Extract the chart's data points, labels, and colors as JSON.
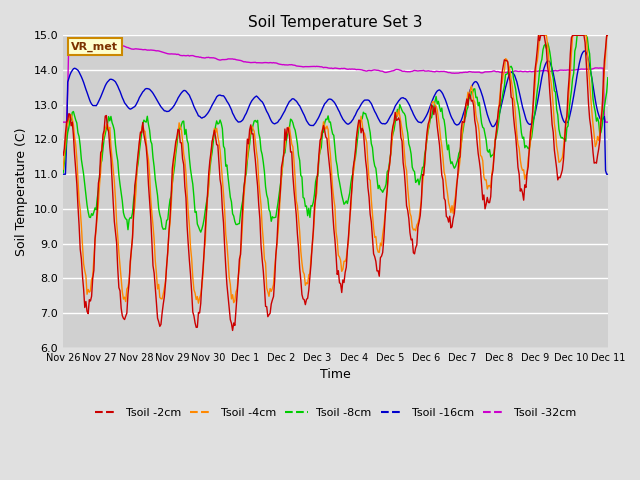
{
  "title": "Soil Temperature Set 3",
  "xlabel": "Time",
  "ylabel": "Soil Temperature (C)",
  "ylim": [
    6.0,
    15.0
  ],
  "yticks": [
    6.0,
    7.0,
    8.0,
    9.0,
    10.0,
    11.0,
    12.0,
    13.0,
    14.0,
    15.0
  ],
  "xtick_labels": [
    "Nov 26",
    "Nov 27",
    "Nov 28",
    "Nov 29",
    "Nov 30",
    "Dec 1",
    "Dec 2",
    "Dec 3",
    "Dec 4",
    "Dec 5",
    "Dec 6",
    "Dec 7",
    "Dec 8",
    "Dec 9",
    "Dec 10",
    "Dec 11"
  ],
  "series_colors": [
    "#cc0000",
    "#ff8800",
    "#00cc00",
    "#0000cc",
    "#cc00cc"
  ],
  "series_labels": [
    "Tsoil -2cm",
    "Tsoil -4cm",
    "Tsoil -8cm",
    "Tsoil -16cm",
    "Tsoil -32cm"
  ],
  "fig_bg": "#e0e0e0",
  "plot_bg": "#d0d0d0",
  "annotation_text": "VR_met",
  "n_points": 480
}
